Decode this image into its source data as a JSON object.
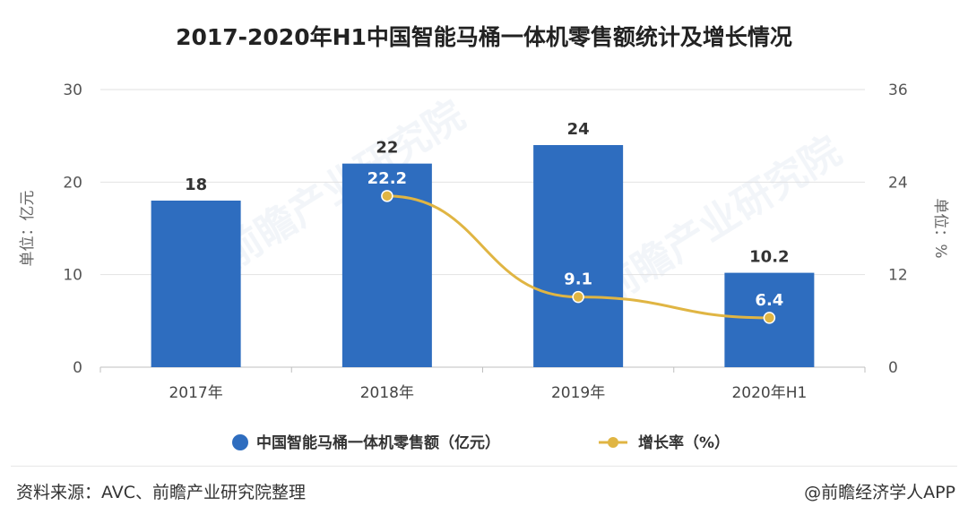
{
  "title": "2017-2020年H1中国智能马桶一体机零售额统计及增长情况",
  "chart_data": {
    "type": "bar",
    "categories": [
      "2017年",
      "2018年",
      "2019年",
      "2020年H1"
    ],
    "series": [
      {
        "name": "中国智能马桶一体机零售额（亿元）",
        "type": "bar",
        "axis": "left",
        "values": [
          18,
          22,
          24,
          10.2
        ],
        "color": "#2e6dbf"
      },
      {
        "name": "增长率（%）",
        "type": "line",
        "axis": "right",
        "x": [
          "2018年",
          "2019年",
          "2020年H1"
        ],
        "values": [
          22.2,
          9.1,
          6.4
        ],
        "color": "#e0b543"
      }
    ],
    "ylabel_left": "单位：亿元",
    "ylabel_right": "单位：%",
    "ylim_left": [
      0,
      30
    ],
    "yticks_left": [
      0,
      10,
      20,
      30
    ],
    "ylim_right": [
      0,
      36
    ],
    "yticks_right": [
      0,
      12,
      24,
      36
    ],
    "grid": true,
    "legend_position": "bottom"
  },
  "footer": {
    "source": "资料来源：AVC、前瞻产业研究院整理",
    "credit": "@前瞻经济学人APP"
  },
  "watermark": "前瞻产业研究院"
}
